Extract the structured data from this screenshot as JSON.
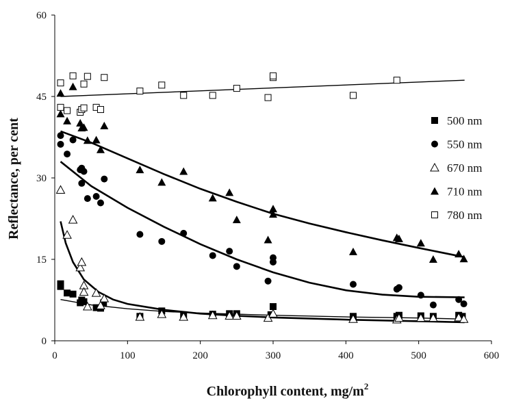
{
  "chart_data": {
    "type": "scatter",
    "title": "",
    "xlabel": "Chlorophyll content, mg/m",
    "xlabel_superscript": "2",
    "ylabel": "Reflectance, per cent",
    "xlim": [
      0,
      600
    ],
    "ylim": [
      0,
      60
    ],
    "x_ticks": [
      0,
      100,
      200,
      300,
      400,
      500,
      600
    ],
    "y_ticks": [
      0,
      15,
      30,
      45,
      60
    ],
    "grid": false,
    "legend_position": "right",
    "series": [
      {
        "name": "500 nm",
        "marker": "filled-square",
        "points": [
          [
            8,
            10.5
          ],
          [
            8,
            10
          ],
          [
            17,
            8.8
          ],
          [
            25,
            8.6
          ],
          [
            35,
            7
          ],
          [
            37,
            7.5
          ],
          [
            40,
            7.2
          ],
          [
            57,
            6.1
          ],
          [
            63,
            6
          ],
          [
            67,
            7
          ],
          [
            117,
            4.5
          ],
          [
            147,
            5.5
          ],
          [
            177,
            4.8
          ],
          [
            217,
            4.9
          ],
          [
            240,
            5
          ],
          [
            250,
            5
          ],
          [
            297,
            4.8
          ],
          [
            300,
            6.3
          ],
          [
            410,
            4.5
          ],
          [
            470,
            4.5
          ],
          [
            473,
            4.7
          ],
          [
            503,
            4.6
          ],
          [
            520,
            4.5
          ],
          [
            555,
            4.7
          ],
          [
            560,
            4.5
          ]
        ],
        "fit": [
          [
            8,
            7.6
          ],
          [
            50,
            6.6
          ],
          [
            100,
            5.9
          ],
          [
            150,
            5.4
          ],
          [
            200,
            5.1
          ],
          [
            250,
            4.9
          ],
          [
            300,
            4.7
          ],
          [
            400,
            4.4
          ],
          [
            500,
            4.2
          ],
          [
            563,
            4
          ]
        ]
      },
      {
        "name": "550 nm",
        "marker": "filled-circle",
        "points": [
          [
            8,
            36.2
          ],
          [
            8,
            37.8
          ],
          [
            17,
            34.4
          ],
          [
            25,
            37
          ],
          [
            35,
            31.5
          ],
          [
            37,
            29
          ],
          [
            37,
            31.8
          ],
          [
            40,
            31.2
          ],
          [
            45,
            26.2
          ],
          [
            57,
            26.6
          ],
          [
            63,
            25.4
          ],
          [
            68,
            29.8
          ],
          [
            117,
            19.6
          ],
          [
            147,
            18.3
          ],
          [
            177,
            19.8
          ],
          [
            217,
            15.7
          ],
          [
            240,
            16.5
          ],
          [
            250,
            13.7
          ],
          [
            293,
            11
          ],
          [
            300,
            14.5
          ],
          [
            300,
            15.3
          ],
          [
            410,
            10.4
          ],
          [
            470,
            9.5
          ],
          [
            473,
            9.8
          ],
          [
            503,
            8.4
          ],
          [
            520,
            6.6
          ],
          [
            555,
            7.6
          ],
          [
            562,
            6.8
          ]
        ],
        "fit": [
          [
            8,
            33
          ],
          [
            50,
            28.5
          ],
          [
            100,
            24.5
          ],
          [
            150,
            21
          ],
          [
            200,
            17.8
          ],
          [
            250,
            15
          ],
          [
            300,
            12.6
          ],
          [
            350,
            10.7
          ],
          [
            400,
            9.3
          ],
          [
            450,
            8.5
          ],
          [
            500,
            8.1
          ],
          [
            563,
            8
          ]
        ]
      },
      {
        "name": "670 nm",
        "marker": "open-triangle",
        "points": [
          [
            8,
            27.8
          ],
          [
            17,
            19.5
          ],
          [
            25,
            22.3
          ],
          [
            35,
            13.5
          ],
          [
            37,
            14.5
          ],
          [
            40,
            10.2
          ],
          [
            40,
            9
          ],
          [
            45,
            6.3
          ],
          [
            57,
            8.8
          ],
          [
            63,
            6.5
          ],
          [
            68,
            7.8
          ],
          [
            117,
            4.4
          ],
          [
            147,
            4.9
          ],
          [
            177,
            4.4
          ],
          [
            217,
            4.7
          ],
          [
            240,
            4.6
          ],
          [
            250,
            4.6
          ],
          [
            293,
            4.2
          ],
          [
            300,
            5
          ],
          [
            410,
            4
          ],
          [
            470,
            3.9
          ],
          [
            473,
            4.2
          ],
          [
            503,
            4.2
          ],
          [
            520,
            4.2
          ],
          [
            555,
            4.3
          ],
          [
            562,
            4
          ]
        ]
      },
      {
        "name": "710 nm",
        "marker": "filled-triangle",
        "points": [
          [
            8,
            45.6
          ],
          [
            8,
            41.8
          ],
          [
            17,
            40.5
          ],
          [
            25,
            46.8
          ],
          [
            35,
            40.1
          ],
          [
            37,
            39.2
          ],
          [
            40,
            39.3
          ],
          [
            45,
            36.9
          ],
          [
            57,
            37
          ],
          [
            63,
            35.2
          ],
          [
            68,
            39.6
          ],
          [
            117,
            31.5
          ],
          [
            147,
            29.2
          ],
          [
            177,
            31.2
          ],
          [
            217,
            26.3
          ],
          [
            240,
            27.3
          ],
          [
            250,
            22.3
          ],
          [
            293,
            18.6
          ],
          [
            300,
            23.3
          ],
          [
            300,
            24.3
          ],
          [
            410,
            16.4
          ],
          [
            470,
            19
          ],
          [
            473,
            18.8
          ],
          [
            503,
            18
          ],
          [
            520,
            15
          ],
          [
            555,
            16
          ],
          [
            562,
            15.1
          ]
        ],
        "fit": [
          [
            8,
            38.6
          ],
          [
            50,
            36.5
          ],
          [
            100,
            33.6
          ],
          [
            150,
            30.7
          ],
          [
            200,
            28
          ],
          [
            250,
            25.6
          ],
          [
            300,
            23.4
          ],
          [
            350,
            21.6
          ],
          [
            400,
            20
          ],
          [
            450,
            18.5
          ],
          [
            500,
            17.1
          ],
          [
            563,
            15.4
          ]
        ]
      },
      {
        "name": "780 nm",
        "marker": "open-square",
        "points": [
          [
            8,
            47.5
          ],
          [
            8,
            43
          ],
          [
            17,
            42.4
          ],
          [
            25,
            48.8
          ],
          [
            35,
            42.1
          ],
          [
            37,
            42.6
          ],
          [
            40,
            47.3
          ],
          [
            40,
            42.9
          ],
          [
            45,
            48.7
          ],
          [
            57,
            43
          ],
          [
            63,
            42.6
          ],
          [
            68,
            48.5
          ],
          [
            117,
            46
          ],
          [
            147,
            47.1
          ],
          [
            177,
            45.2
          ],
          [
            217,
            45.2
          ],
          [
            250,
            46.5
          ],
          [
            293,
            44.8
          ],
          [
            300,
            48.5
          ],
          [
            300,
            48.8
          ],
          [
            410,
            45.2
          ],
          [
            470,
            48
          ]
        ],
        "fit": [
          [
            8,
            45
          ],
          [
            563,
            48
          ]
        ]
      }
    ],
    "fit_670nm": [
      [
        8,
        22
      ],
      [
        15,
        18
      ],
      [
        25,
        14.5
      ],
      [
        40,
        11.3
      ],
      [
        60,
        9
      ],
      [
        80,
        7.6
      ],
      [
        100,
        6.8
      ],
      [
        150,
        5.7
      ],
      [
        200,
        5
      ],
      [
        250,
        4.6
      ],
      [
        300,
        4.3
      ],
      [
        400,
        3.9
      ],
      [
        500,
        3.6
      ],
      [
        563,
        3.4
      ]
    ]
  }
}
